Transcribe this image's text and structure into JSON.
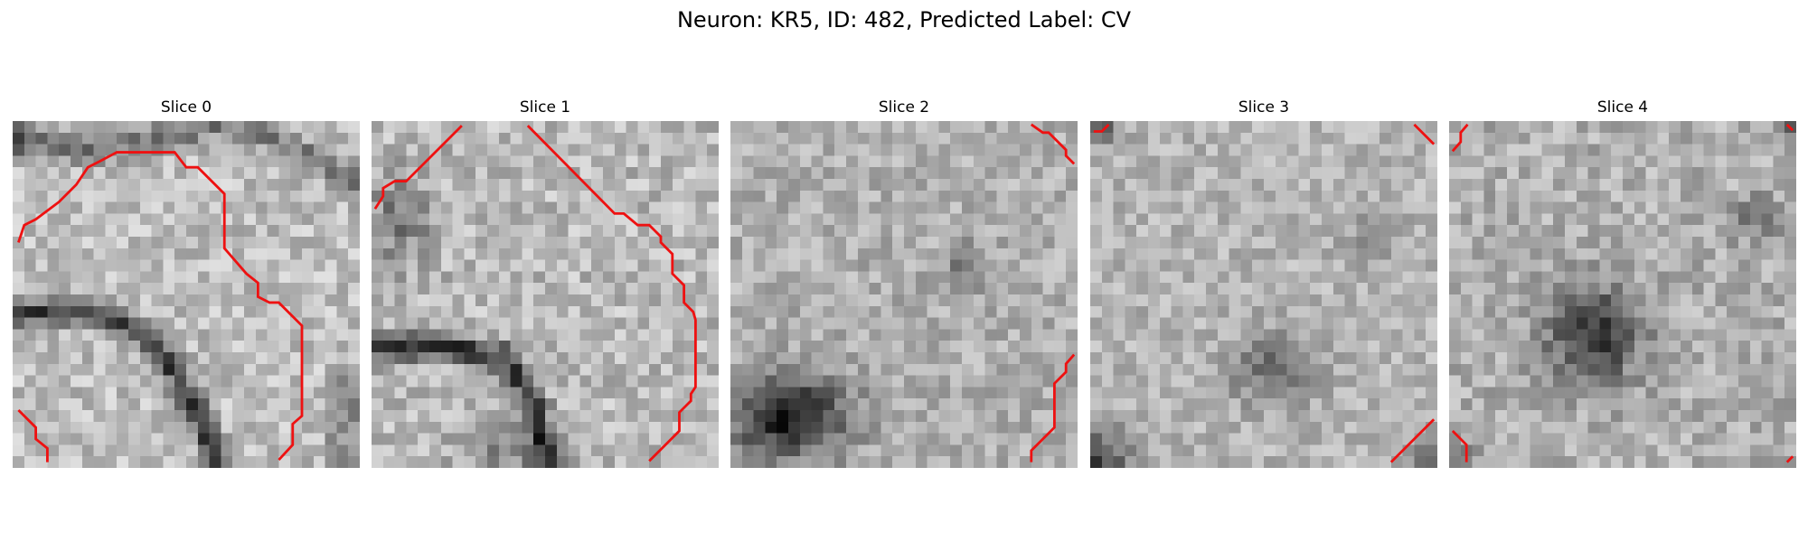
{
  "figure": {
    "title": "Neuron: KR5, ID: 482, Predicted Label: CV"
  },
  "contour_color": "#ee1111",
  "slices": [
    {
      "title": "Slice 0"
    },
    {
      "title": "Slice 1"
    },
    {
      "title": "Slice 2"
    },
    {
      "title": "Slice 3"
    },
    {
      "title": "Slice 4"
    }
  ]
}
